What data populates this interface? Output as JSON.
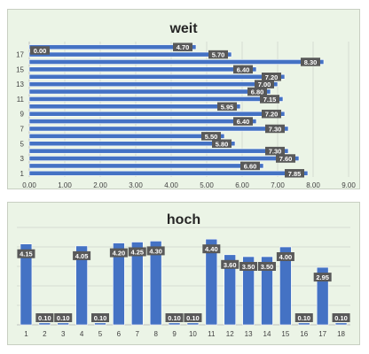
{
  "chart_data": [
    {
      "type": "bar",
      "orientation": "horizontal",
      "title": "weit",
      "xlim": [
        0,
        9
      ],
      "xticks": [
        "0.00",
        "1.00",
        "2.00",
        "3.00",
        "4.00",
        "5.00",
        "6.00",
        "7.00",
        "8.00",
        "9.00"
      ],
      "yticks": [
        "1",
        "3",
        "5",
        "7",
        "9",
        "11",
        "13",
        "15",
        "17"
      ],
      "categories": [
        1,
        2,
        3,
        4,
        5,
        6,
        7,
        8,
        9,
        10,
        11,
        12,
        13,
        14,
        15,
        16,
        17,
        18
      ],
      "values": [
        7.85,
        6.6,
        7.6,
        7.3,
        5.8,
        5.5,
        7.3,
        6.4,
        7.2,
        5.95,
        7.15,
        6.8,
        7.0,
        7.2,
        6.4,
        8.3,
        5.7,
        4.7
      ],
      "labels": [
        "7.85",
        "6.60",
        "7.60",
        "7.30",
        "5.80",
        "5.50",
        "7.30",
        "6.40",
        "7.20",
        "5.95",
        "7.15",
        "6.80",
        "7.00",
        "7.20",
        "6.40",
        "8.30",
        "5.70",
        "4.70"
      ],
      "extra_labels": [
        "0.00"
      ],
      "grid": "vertical",
      "bar_color": "#4472c4"
    },
    {
      "type": "bar",
      "orientation": "vertical",
      "title": "hoch",
      "categories": [
        "1",
        "2",
        "3",
        "4",
        "5",
        "6",
        "7",
        "8",
        "9",
        "10",
        "11",
        "12",
        "13",
        "14",
        "15",
        "16",
        "17",
        "18"
      ],
      "values": [
        4.15,
        0.1,
        0.1,
        4.05,
        0.1,
        4.2,
        4.25,
        4.3,
        0.1,
        0.1,
        4.4,
        3.6,
        3.5,
        3.5,
        4.0,
        0.1,
        2.95,
        0.1
      ],
      "labels": [
        "4.15",
        "0.10",
        "0.10",
        "4.05",
        "0.10",
        "4.20",
        "4.25",
        "4.30",
        "0.10",
        "0.10",
        "4.40",
        "3.60",
        "3.50",
        "3.50",
        "4.00",
        "0.10",
        "2.95",
        "0.10"
      ],
      "ylim": [
        0,
        5
      ],
      "grid": "horizontal",
      "bar_color": "#4472c4"
    }
  ]
}
